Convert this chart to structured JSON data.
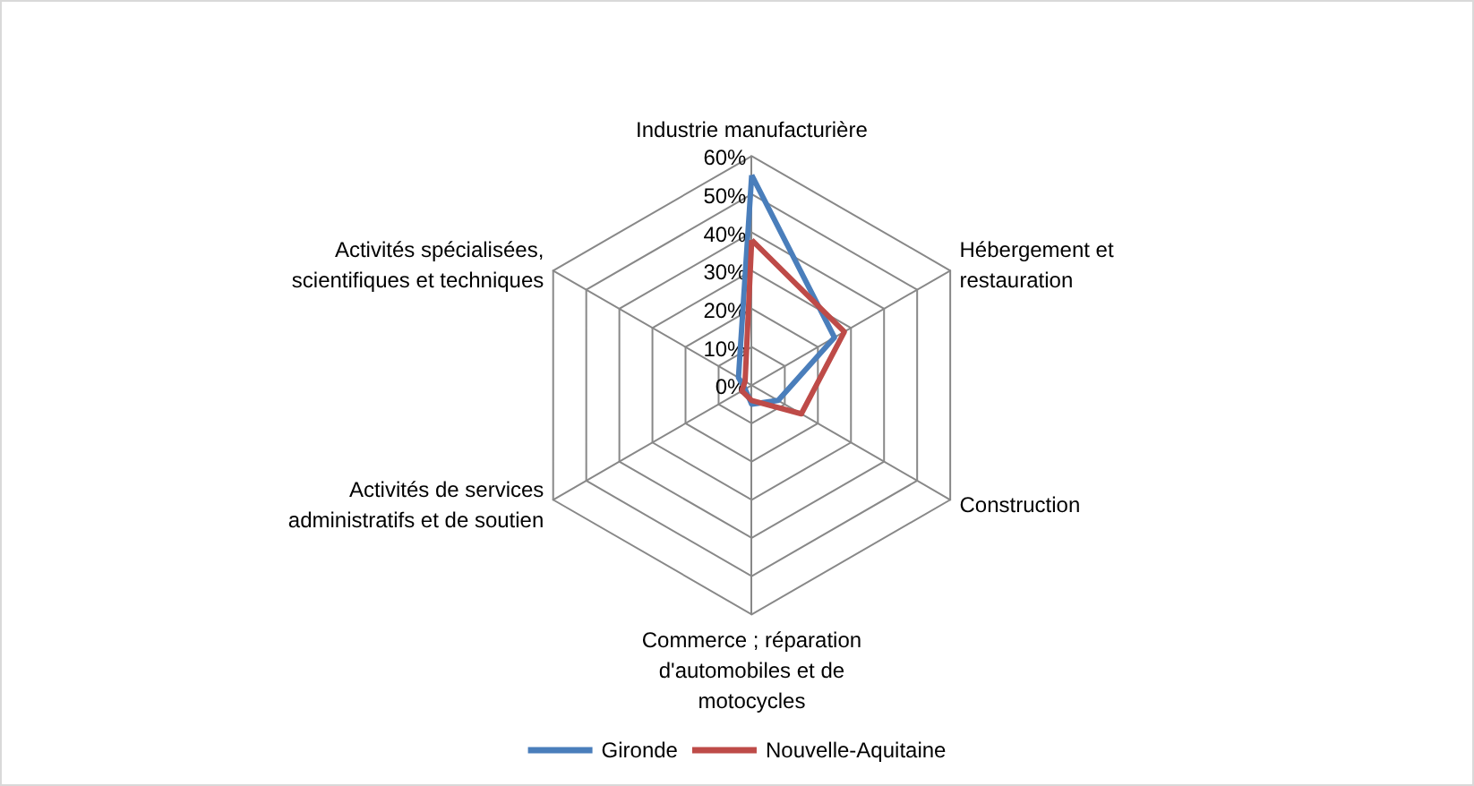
{
  "chart_data": {
    "type": "radar",
    "categories": [
      "Industrie manufacturière",
      "Hébergement et\nrestauration",
      "Construction",
      "Commerce ; réparation\nd'automobiles et de\nmotocycles",
      "Activités de services\nadministratifs et de soutien",
      "Activités spécialisées,\nscientifiques et techniques"
    ],
    "series": [
      {
        "name": "Gironde",
        "color": "#4a7ebb",
        "values": [
          55,
          25,
          8,
          5,
          2,
          4
        ]
      },
      {
        "name": "Nouvelle-Aquitaine",
        "color": "#be4b48",
        "values": [
          38,
          28,
          15,
          4,
          3,
          2
        ]
      }
    ],
    "ylim": [
      0,
      60
    ],
    "yticks": [
      {
        "value": 0,
        "label": "0%"
      },
      {
        "value": 10,
        "label": "10%"
      },
      {
        "value": 20,
        "label": "20%"
      },
      {
        "value": 30,
        "label": "30%"
      },
      {
        "value": 40,
        "label": "40%"
      },
      {
        "value": 50,
        "label": "50%"
      },
      {
        "value": 60,
        "label": "60%"
      }
    ],
    "legend": "bottom",
    "marker": "none",
    "line_style": "solid",
    "grid": true
  }
}
